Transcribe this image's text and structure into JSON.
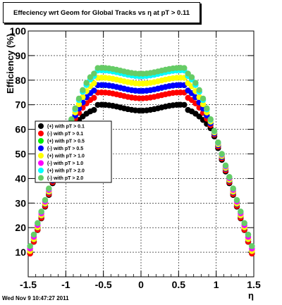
{
  "title": "Effeciency wrt Geom for Global Tracks vs    η at pT > 0.11",
  "timestamp": "Wed Nov  9 10:47:27 2011",
  "chart_data": {
    "type": "scatter",
    "xlabel": "η",
    "ylabel": "Efficiency (%)",
    "xlim": [
      -1.5,
      1.5
    ],
    "ylim": [
      0,
      100
    ],
    "xticks": [
      -1.5,
      -1,
      -0.5,
      0,
      0.5,
      1,
      1.5
    ],
    "xtick_labels": [
      "-1.5",
      "-1",
      "-0.5",
      "0",
      "0.5",
      "1",
      "1.5"
    ],
    "yticks": [
      0,
      10,
      20,
      30,
      40,
      50,
      60,
      70,
      80,
      90,
      100
    ],
    "ytick_labels": [
      "",
      "10",
      "20",
      "30",
      "40",
      "50",
      "60",
      "70",
      "80",
      "90",
      "100"
    ],
    "grid": true,
    "legend_position": "middle-left",
    "series": [
      {
        "name": "(+) with pT > 0.1",
        "color": "#000000",
        "plateau": 68,
        "edge": 9
      },
      {
        "name": "(-) with pT > 0.1",
        "color": "#ff0000",
        "plateau": 73,
        "edge": 9
      },
      {
        "name": "(+) with pT > 0.5",
        "color": "#00ee00",
        "plateau": 76,
        "edge": 10
      },
      {
        "name": "(-) with pT > 0.5",
        "color": "#0000ff",
        "plateau": 76,
        "edge": 10
      },
      {
        "name": "(+) with pT > 1.0",
        "color": "#ffff00",
        "plateau": 79,
        "edge": 10
      },
      {
        "name": "(-) with pT > 1.0",
        "color": "#ff00ff",
        "plateau": 82,
        "edge": 11
      },
      {
        "name": "(+) with pT > 2.0",
        "color": "#00ffff",
        "plateau": 82,
        "edge": 12
      },
      {
        "name": "(-) with pT > 2.0",
        "color": "#66cc66",
        "plateau": 83,
        "edge": 12
      }
    ]
  }
}
